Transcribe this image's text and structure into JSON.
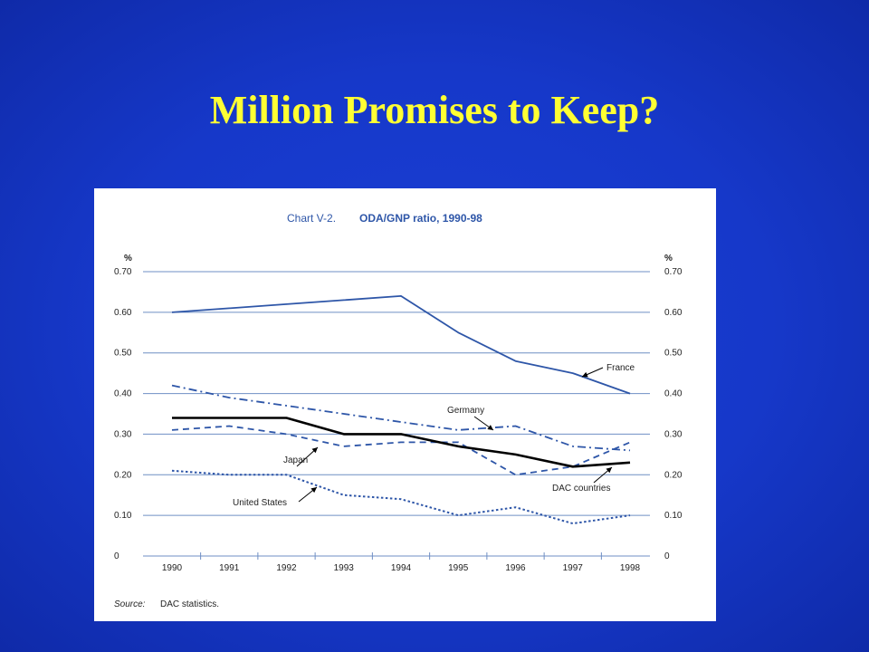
{
  "slide": {
    "title": "Million Promises to Keep?"
  },
  "chart_data": {
    "type": "line",
    "title_prefix": "Chart V-2.",
    "title": "ODA/GNP ratio, 1990-98",
    "ylabel_left": "%",
    "ylabel_right": "%",
    "source_label": "Source:",
    "source_text": "DAC statistics.",
    "ylim": [
      0,
      0.7
    ],
    "yticks": [
      "0",
      "0.10",
      "0.20",
      "0.30",
      "0.40",
      "0.50",
      "0.60",
      "0.70"
    ],
    "ytick_values": [
      0,
      0.1,
      0.2,
      0.3,
      0.4,
      0.5,
      0.6,
      0.7
    ],
    "x": [
      "1990",
      "1991",
      "1992",
      "1993",
      "1994",
      "1995",
      "1996",
      "1997",
      "1998"
    ],
    "grid": true,
    "series": [
      {
        "name": "France",
        "style": "solid",
        "color": "#2e56a8",
        "values": [
          0.6,
          0.61,
          0.62,
          0.63,
          0.64,
          0.55,
          0.48,
          0.45,
          0.4
        ]
      },
      {
        "name": "Germany",
        "style": "dashdot",
        "color": "#2e56a8",
        "values": [
          0.42,
          0.39,
          0.37,
          0.35,
          0.33,
          0.31,
          0.32,
          0.27,
          0.26
        ]
      },
      {
        "name": "Japan",
        "style": "dashed",
        "color": "#2e56a8",
        "values": [
          0.31,
          0.32,
          0.3,
          0.27,
          0.28,
          0.28,
          0.2,
          0.22,
          0.28
        ]
      },
      {
        "name": "DAC countries",
        "style": "solid-bold",
        "color": "#000000",
        "values": [
          0.34,
          0.34,
          0.34,
          0.3,
          0.3,
          0.27,
          0.25,
          0.22,
          0.23
        ]
      },
      {
        "name": "United States",
        "style": "dotted",
        "color": "#2e56a8",
        "values": [
          0.21,
          0.2,
          0.2,
          0.15,
          0.14,
          0.1,
          0.12,
          0.08,
          0.1
        ]
      }
    ]
  }
}
